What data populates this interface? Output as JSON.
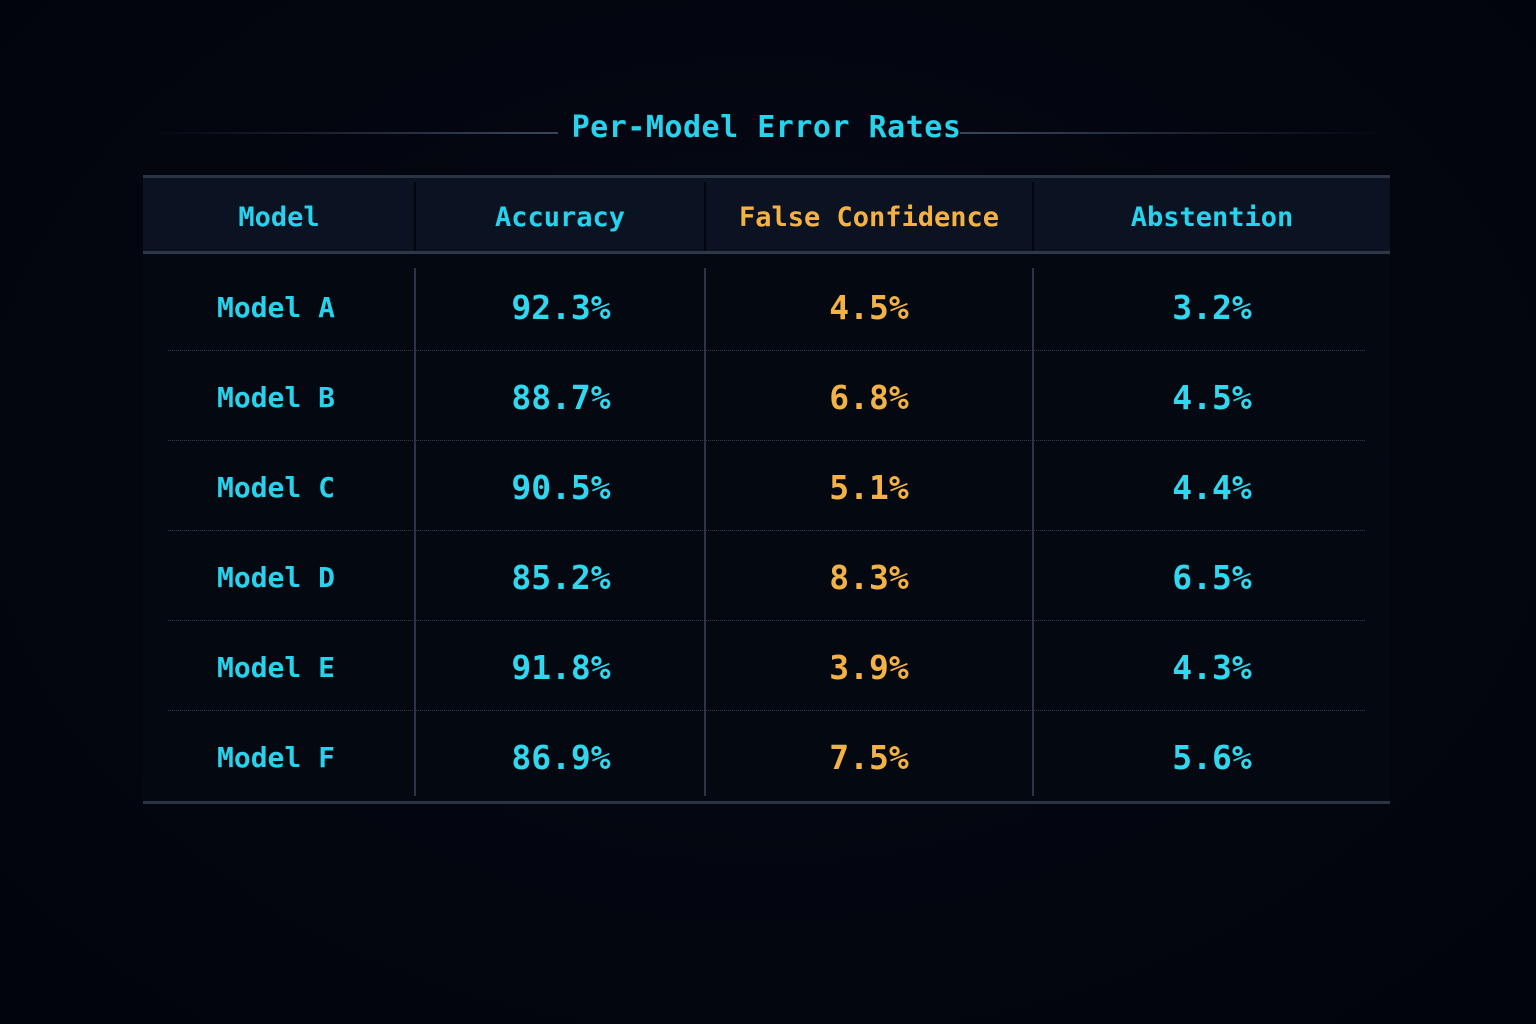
{
  "chart_data": {
    "type": "table",
    "title": "Per-Model Error Rates",
    "columns": [
      "Model",
      "Accuracy",
      "False Confidence",
      "Abstention"
    ],
    "rows": [
      {
        "model": "Model A",
        "accuracy": "92.3%",
        "false_confidence": "4.5%",
        "abstention": "3.2%"
      },
      {
        "model": "Model B",
        "accuracy": "88.7%",
        "false_confidence": "6.8%",
        "abstention": "4.5%"
      },
      {
        "model": "Model C",
        "accuracy": "90.5%",
        "false_confidence": "5.1%",
        "abstention": "4.4%"
      },
      {
        "model": "Model D",
        "accuracy": "85.2%",
        "false_confidence": "8.3%",
        "abstention": "6.5%"
      },
      {
        "model": "Model E",
        "accuracy": "91.8%",
        "false_confidence": "3.9%",
        "abstention": "4.3%"
      },
      {
        "model": "Model F",
        "accuracy": "86.9%",
        "false_confidence": "7.5%",
        "abstention": "5.6%"
      }
    ],
    "colors": {
      "primary": "#27d3ec",
      "highlight": "#f5b244",
      "background": "#03060f"
    }
  }
}
